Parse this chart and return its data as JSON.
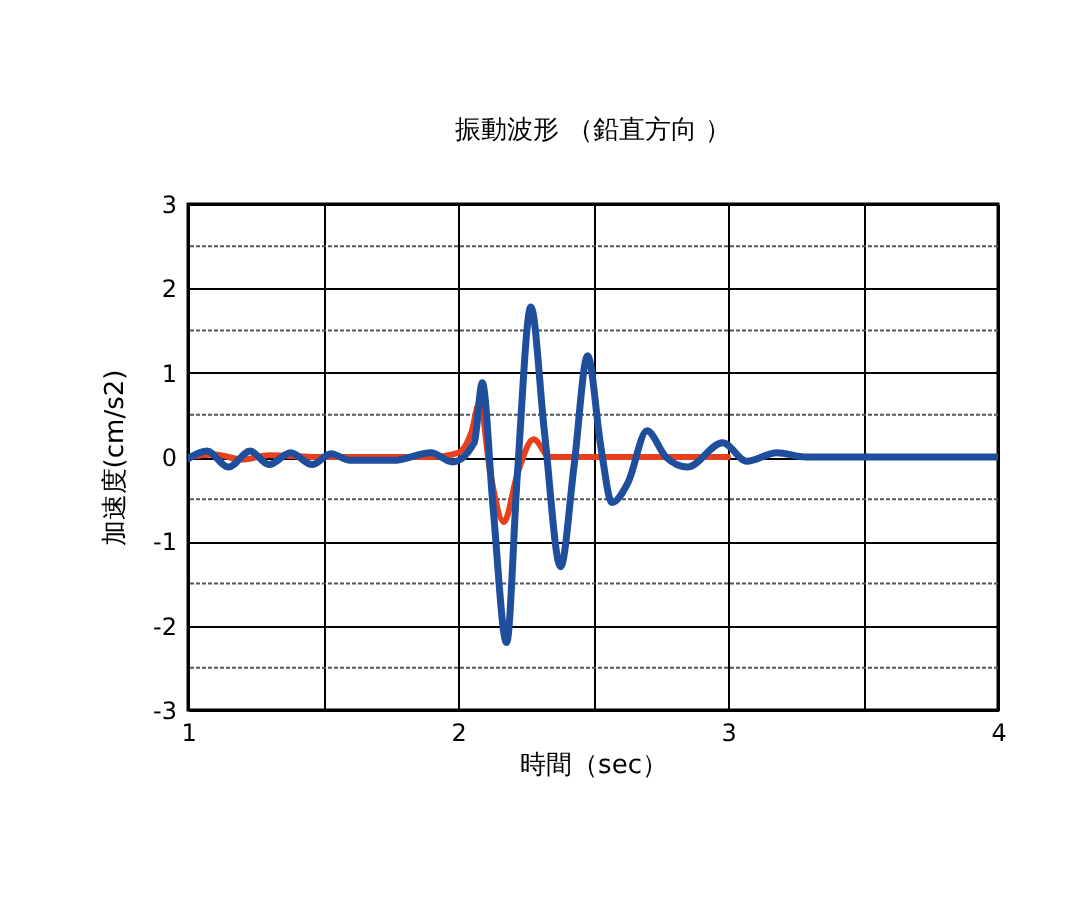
{
  "chart_data": {
    "type": "line",
    "title": "振動波形 （鉛直方向 ）",
    "xlabel": "時間（sec）",
    "ylabel": "加速度(cm/s2)",
    "xlim": [
      1,
      4
    ],
    "xticks": [
      1,
      {
        "value": 1.5,
        "label": null
      },
      2,
      {
        "value": 2.5,
        "label": null
      },
      3,
      {
        "value": 3.5,
        "label": null
      },
      4
    ],
    "ylim": [
      -3,
      3
    ],
    "yticks": [
      -3,
      {
        "value": -2.5,
        "label": null
      },
      -2,
      {
        "value": -1.5,
        "label": null
      },
      -1,
      {
        "value": -0.5,
        "label": null
      },
      0,
      {
        "value": 0.5,
        "label": null
      },
      1,
      {
        "value": 1.5,
        "label": null
      },
      2,
      {
        "value": 2.5,
        "label": null
      },
      3
    ],
    "grid": true,
    "series": [
      {
        "color": "#e8401c",
        "x": [
          1.0,
          1.1,
          1.2,
          1.3,
          1.5,
          1.9,
          2.0,
          2.05,
          2.08,
          2.12,
          2.17,
          2.22,
          2.28,
          2.34,
          3.0
        ],
        "values": [
          0,
          0.03,
          -0.03,
          0.02,
          0,
          0,
          0.05,
          0.3,
          0.65,
          -0.2,
          -0.77,
          -0.2,
          0.21,
          0,
          0
        ]
      },
      {
        "color": "#1f4e9c",
        "x": [
          1.0,
          1.07,
          1.15,
          1.23,
          1.3,
          1.38,
          1.46,
          1.53,
          1.6,
          1.76,
          1.9,
          1.98,
          2.06,
          2.09,
          2.13,
          2.18,
          2.22,
          2.27,
          2.32,
          2.38,
          2.43,
          2.48,
          2.53,
          2.57,
          2.63,
          2.7,
          2.77,
          2.85,
          2.98,
          3.07,
          3.18,
          3.29,
          4.0
        ],
        "values": [
          -0.02,
          0.07,
          -0.12,
          0.07,
          -0.09,
          0.05,
          -0.09,
          0.04,
          -0.04,
          -0.04,
          0.05,
          -0.06,
          0.17,
          0.88,
          -0.6,
          -2.2,
          -0.2,
          1.78,
          0.3,
          -1.3,
          -0.1,
          1.2,
          0.1,
          -0.54,
          -0.3,
          0.31,
          0,
          -0.12,
          0.17,
          -0.05,
          0.05,
          0,
          0
        ]
      }
    ]
  }
}
